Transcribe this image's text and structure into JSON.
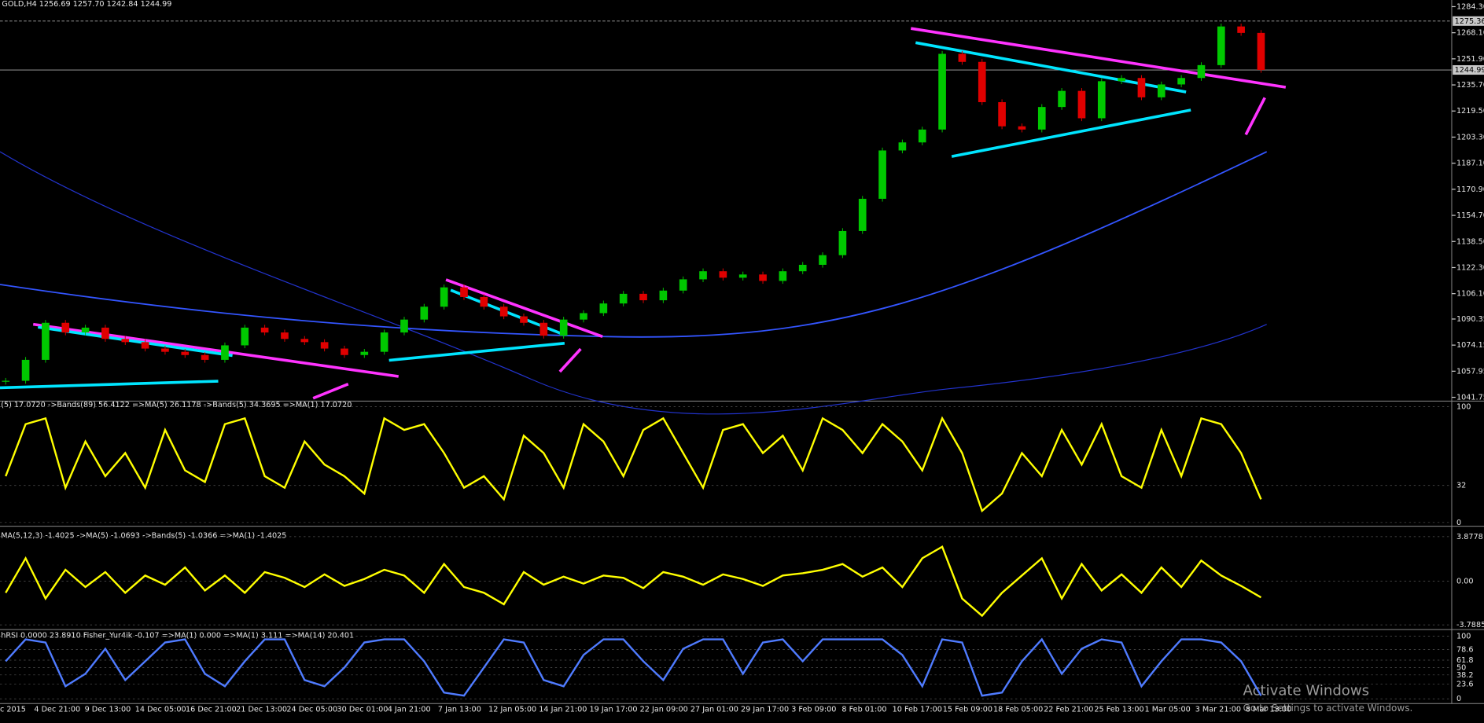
{
  "header": {
    "title": "GOLD,H4  1256.69 1257.70 1242.84 1244.99"
  },
  "main_chart": {
    "type": "candlestick",
    "up_color": "#00c800",
    "down_color": "#e00000",
    "ylim": [
      1041.75,
      1284.3
    ],
    "yticks": [
      {
        "value": 1284.3,
        "label": "1284.30"
      },
      {
        "value": 1268.1,
        "label": "1268.10"
      },
      {
        "value": 1251.9,
        "label": "1251.90"
      },
      {
        "value": 1235.7,
        "label": "1235.70"
      },
      {
        "value": 1219.5,
        "label": "1219.50"
      },
      {
        "value": 1203.3,
        "label": "1203.30"
      },
      {
        "value": 1187.1,
        "label": "1187.10"
      },
      {
        "value": 1170.9,
        "label": "1170.90"
      },
      {
        "value": 1154.7,
        "label": "1154.70"
      },
      {
        "value": 1138.5,
        "label": "1138.50"
      },
      {
        "value": 1122.3,
        "label": "1122.30"
      },
      {
        "value": 1106.1,
        "label": "1106.10"
      },
      1090.35,
      1074.15,
      1057.95,
      1041.75
    ],
    "price_tags": [
      {
        "value": 1275.36,
        "label": "1275.36"
      },
      {
        "value": 1244.99,
        "label": "1244.99"
      }
    ],
    "closes": [
      1052,
      1065,
      1088,
      1082,
      1085,
      1078,
      1076,
      1072,
      1070,
      1068,
      1065,
      1074,
      1085,
      1082,
      1078,
      1076,
      1072,
      1068,
      1070,
      1082,
      1090,
      1098,
      1110,
      1104,
      1098,
      1092,
      1088,
      1080,
      1090,
      1094,
      1100,
      1106,
      1102,
      1108,
      1115,
      1120,
      1116,
      1118,
      1114,
      1120,
      1124,
      1130,
      1145,
      1165,
      1195,
      1200,
      1208,
      1255,
      1250,
      1225,
      1210,
      1208,
      1222,
      1232,
      1215,
      1238,
      1240,
      1228,
      1236,
      1240,
      1248,
      1272,
      1268,
      1245
    ]
  },
  "panes": [
    {
      "legend": "(5) 17.0720 ->Bands(89) 56.4122 =>MA(5) 26.1178 ->Bands(5) 34.3695 =>MA(1) 17.0720",
      "color": "#ffff00",
      "ylim": [
        0,
        100
      ],
      "yticks": [
        100,
        32,
        0
      ],
      "values": [
        40,
        85,
        90,
        30,
        70,
        40,
        60,
        30,
        80,
        45,
        35,
        85,
        90,
        40,
        30,
        70,
        50,
        40,
        25,
        90,
        80,
        85,
        60,
        30,
        40,
        20,
        75,
        60,
        30,
        85,
        70,
        40,
        80,
        90,
        60,
        30,
        80,
        85,
        60,
        75,
        45,
        90,
        80,
        60,
        85,
        70,
        45,
        90,
        60,
        10,
        25,
        60,
        40,
        80,
        50,
        85,
        40,
        30,
        80,
        40,
        90,
        85,
        60,
        20
      ]
    },
    {
      "legend": "MA(5,12,3) -1.4025 ->MA(5) -1.0693 ->Bands(5) -1.0366 =>MA(1) -1.4025",
      "color": "#ffff00",
      "ylim": [
        -3.7885,
        3.8778
      ],
      "yticks": [
        3.8778,
        {
          "value": 0,
          "label": "0.00"
        },
        -3.7885
      ],
      "values": [
        -1,
        2,
        -1.5,
        1,
        -0.5,
        0.8,
        -1,
        0.5,
        -0.3,
        1.2,
        -0.8,
        0.5,
        -1,
        0.8,
        0.3,
        -0.5,
        0.6,
        -0.4,
        0.2,
        1,
        0.5,
        -1,
        1.5,
        -0.5,
        -1,
        -2,
        0.8,
        -0.3,
        0.4,
        -0.2,
        0.5,
        0.3,
        -0.6,
        0.8,
        0.4,
        -0.3,
        0.6,
        0.2,
        -0.4,
        0.5,
        0.7,
        1,
        1.5,
        0.4,
        1.2,
        -0.5,
        2,
        3,
        -1.5,
        -3,
        -1,
        0.5,
        2,
        -1.5,
        1.5,
        -0.8,
        0.6,
        -1,
        1.2,
        -0.5,
        1.8,
        0.5,
        -0.4,
        -1.4
      ]
    },
    {
      "legend": "hRSI 0.0000 23.8910 Fisher_Yur4ik -0.107 =>MA(1) 0.000 =>MA(1) 3.111 =>MA(14) 20.401",
      "color": "#4f7bff",
      "ylim": [
        0,
        100
      ],
      "yticks": [
        100,
        78.6,
        61.8,
        50,
        38.2,
        23.6,
        0
      ],
      "values": [
        60,
        95,
        90,
        20,
        40,
        80,
        30,
        60,
        90,
        95,
        40,
        20,
        60,
        95,
        95,
        30,
        20,
        50,
        90,
        95,
        95,
        60,
        10,
        5,
        50,
        95,
        90,
        30,
        20,
        70,
        95,
        95,
        60,
        30,
        80,
        95,
        95,
        40,
        90,
        95,
        60,
        95,
        95,
        95,
        95,
        70,
        20,
        95,
        90,
        5,
        10,
        60,
        95,
        40,
        80,
        95,
        90,
        20,
        60,
        95,
        95,
        90,
        60,
        5
      ]
    }
  ],
  "time_axis": {
    "labels": [
      "c 2015",
      "4 Dec 21:00",
      "9 Dec 13:00",
      "14 Dec 05:00",
      "16 Dec 21:00",
      "21 Dec 13:00",
      "24 Dec 05:00",
      "30 Dec 01:00",
      "4 Jan 21:00",
      "7 Jan 13:00",
      "12 Jan 05:00",
      "14 Jan 21:00",
      "19 Jan 17:00",
      "22 Jan 09:00",
      "27 Jan 01:00",
      "29 Jan 17:00",
      "3 Feb 09:00",
      "8 Feb 01:00",
      "10 Feb 17:00",
      "15 Feb 09:00",
      "18 Feb 05:00",
      "22 Feb 21:00",
      "25 Feb 13:00",
      "1 Mar 05:00",
      "3 Mar 21:00",
      "8 Mar 13:00"
    ]
  },
  "watermark": {
    "title": "Activate Windows",
    "subtitle": "Go to Settings to activate Windows."
  }
}
